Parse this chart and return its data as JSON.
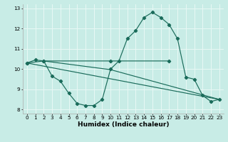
{
  "xlabel": "Humidex (Indice chaleur)",
  "xlim": [
    -0.5,
    23.5
  ],
  "ylim": [
    7.8,
    13.2
  ],
  "yticks": [
    8,
    9,
    10,
    11,
    12,
    13
  ],
  "xticks": [
    0,
    1,
    2,
    3,
    4,
    5,
    6,
    7,
    8,
    9,
    10,
    11,
    12,
    13,
    14,
    15,
    16,
    17,
    18,
    19,
    20,
    21,
    22,
    23
  ],
  "background_color": "#c8ece6",
  "grid_color": "#e8f8f5",
  "line_color": "#1a6b5a",
  "line1_x": [
    0,
    1,
    2,
    3,
    4,
    5,
    6,
    7,
    8,
    9,
    10,
    11,
    12,
    13,
    14,
    15,
    16,
    17,
    18,
    19,
    20,
    21,
    22,
    23
  ],
  "line1_y": [
    10.3,
    10.45,
    10.4,
    9.65,
    9.4,
    8.8,
    8.3,
    8.2,
    8.2,
    8.5,
    10.0,
    10.4,
    11.5,
    11.9,
    12.55,
    12.8,
    12.55,
    12.2,
    11.5,
    9.6,
    9.5,
    8.7,
    8.4,
    8.5
  ],
  "line2_x": [
    0,
    2,
    10,
    17
  ],
  "line2_y": [
    10.3,
    10.4,
    10.4,
    10.4
  ],
  "line3_x": [
    0,
    23
  ],
  "line3_y": [
    10.3,
    8.5
  ],
  "line4_x": [
    2,
    10,
    23
  ],
  "line4_y": [
    10.4,
    9.97,
    8.5
  ],
  "xlabel_fontsize": 6.5,
  "tick_fontsize": 5.2,
  "marker_size": 2.2,
  "linewidth": 0.85
}
